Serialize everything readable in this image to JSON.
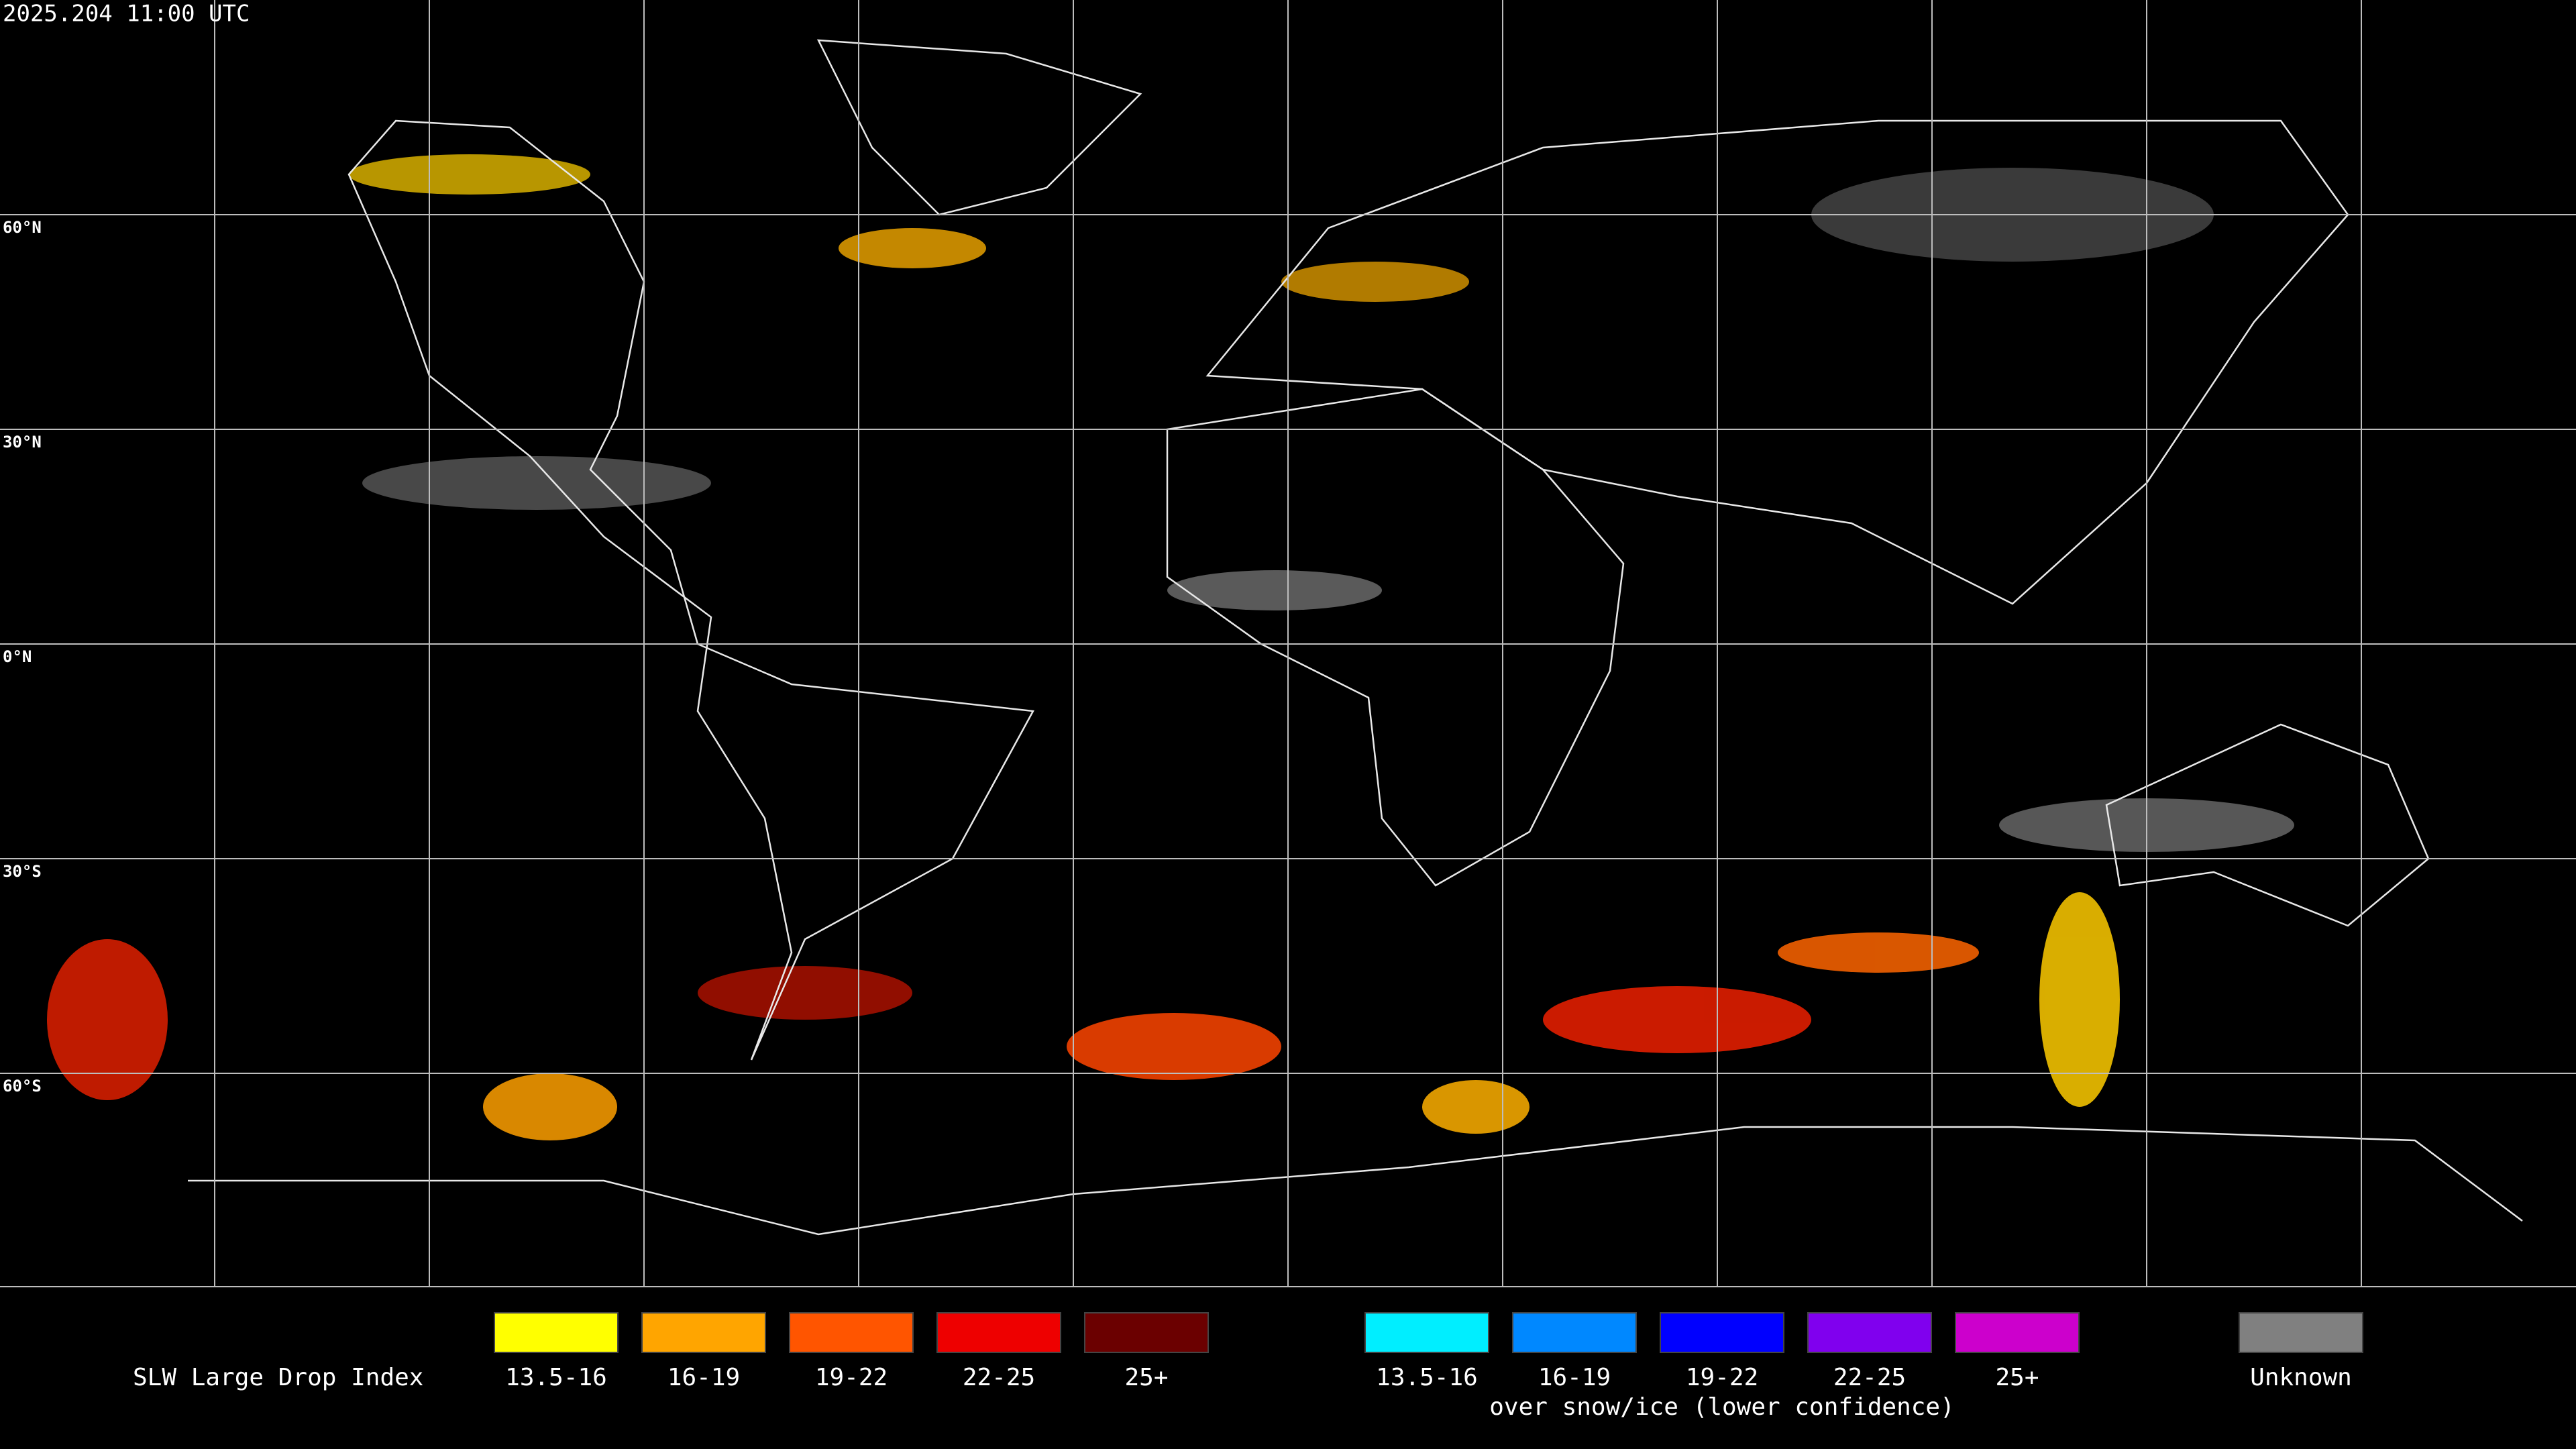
{
  "header": {
    "timestamp": "2025.204 11:00 UTC"
  },
  "map": {
    "lat_labels": [
      "60°N",
      "30°N",
      "0°N",
      "30°S",
      "60°S"
    ]
  },
  "legend": {
    "title": "SLW Large Drop Index",
    "groups": [
      {
        "items": [
          {
            "label": "13.5-16",
            "color": "#ffff00"
          },
          {
            "label": "16-19",
            "color": "#ffa500"
          },
          {
            "label": "19-22",
            "color": "#ff5500"
          },
          {
            "label": "22-25",
            "color": "#ee0000"
          },
          {
            "label": "25+",
            "color": "#6b0000"
          }
        ]
      },
      {
        "items": [
          {
            "label": "13.5-16",
            "color": "#00eeff"
          },
          {
            "label": "16-19",
            "color": "#0088ff"
          },
          {
            "label": "19-22",
            "color": "#0000ff"
          },
          {
            "label": "22-25",
            "color": "#8000ee"
          },
          {
            "label": "25+",
            "color": "#cc00cc"
          }
        ],
        "note": "over snow/ice (lower confidence)"
      },
      {
        "items": [
          {
            "label": "Unknown",
            "color": "#808080"
          }
        ]
      }
    ]
  }
}
